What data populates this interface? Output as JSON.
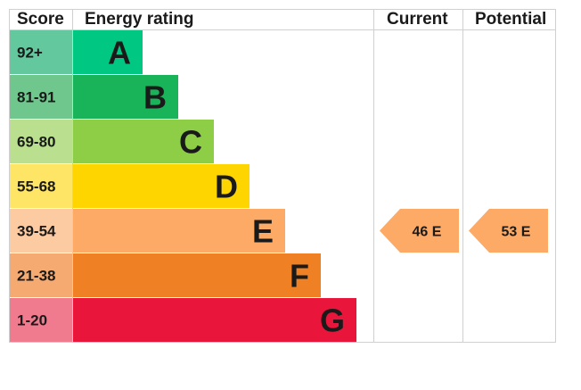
{
  "headers": {
    "score": "Score",
    "energy_rating": "Energy rating",
    "current": "Current",
    "potential": "Potential"
  },
  "chart_data": {
    "type": "bar",
    "bands": [
      {
        "score": "92+",
        "letter": "A",
        "color": "#00c781",
        "score_bg": "#63c89e"
      },
      {
        "score": "81-91",
        "letter": "B",
        "color": "#19b459",
        "score_bg": "#6fc78d"
      },
      {
        "score": "69-80",
        "letter": "C",
        "color": "#8dce46",
        "score_bg": "#b9df8f"
      },
      {
        "score": "55-68",
        "letter": "D",
        "color": "#ffd500",
        "score_bg": "#ffe566"
      },
      {
        "score": "39-54",
        "letter": "E",
        "color": "#fcaa65",
        "score_bg": "#fdcba2"
      },
      {
        "score": "21-38",
        "letter": "F",
        "color": "#ef8023",
        "score_bg": "#f5aa72"
      },
      {
        "score": "1-20",
        "letter": "G",
        "color": "#e9153b",
        "score_bg": "#f07a8e"
      }
    ],
    "current": {
      "value": 46,
      "band": "E",
      "label": "46  E",
      "color": "#fcaa65"
    },
    "potential": {
      "value": 53,
      "band": "E",
      "label": "53  E",
      "color": "#fcaa65"
    }
  }
}
